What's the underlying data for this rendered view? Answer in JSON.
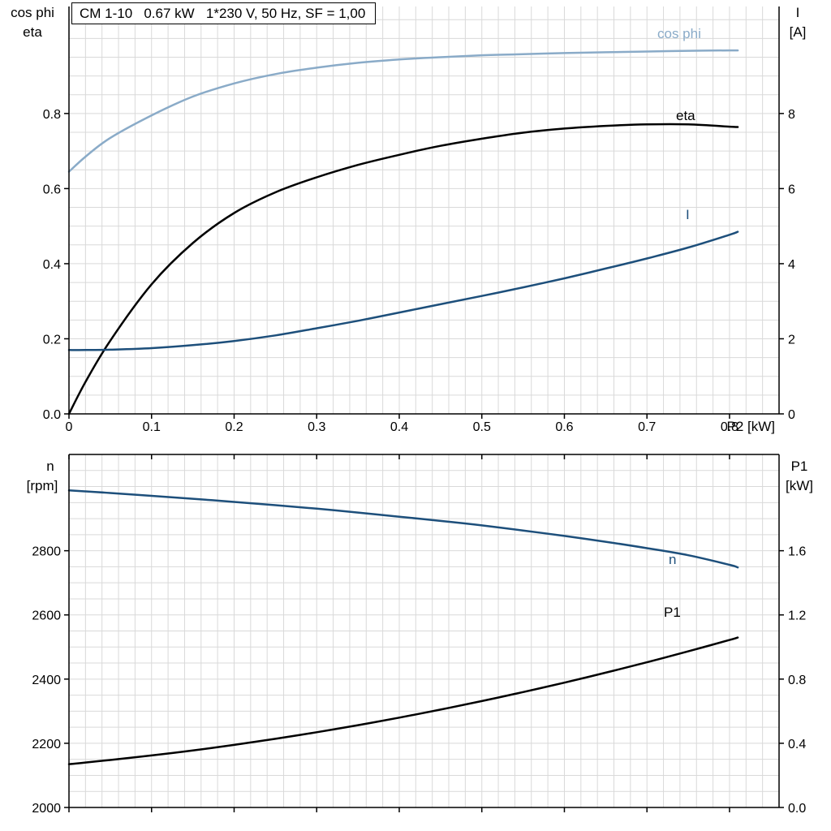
{
  "colors": {
    "grid": "#d9d9d9",
    "axis": "#000000",
    "light_blue": "#8aabc8",
    "dark_blue": "#1d4f7b",
    "black": "#000000"
  },
  "title_box": {
    "text": "CM 1-10   0.67 kW   1*230 V, 50 Hz, SF = 1,00"
  },
  "chart_data": [
    {
      "type": "line",
      "title": "CM 1-10   0.67 kW   1*230 V, 50 Hz, SF = 1,00",
      "x_axis_title": "P2 [kW]",
      "left_axis_title_line1": "cos phi",
      "left_axis_title_line2": "eta",
      "right_axis_title_line1": "I",
      "right_axis_title_line2": "[A]",
      "x_range": [
        0,
        0.86
      ],
      "y_left_range": [
        0,
        1.085
      ],
      "y_right_range": [
        0,
        10.85
      ],
      "grid": "on",
      "x_ticks": [
        {
          "v": 0,
          "label": "0"
        },
        {
          "v": 0.1,
          "label": "0.1"
        },
        {
          "v": 0.2,
          "label": "0.2"
        },
        {
          "v": 0.3,
          "label": "0.3"
        },
        {
          "v": 0.4,
          "label": "0.4"
        },
        {
          "v": 0.5,
          "label": "0.5"
        },
        {
          "v": 0.6,
          "label": "0.6"
        },
        {
          "v": 0.7,
          "label": "0.7"
        },
        {
          "v": 0.8,
          "label": "0.8"
        }
      ],
      "y_left_ticks": [
        {
          "v": 0,
          "label": "0.0"
        },
        {
          "v": 0.2,
          "label": "0.2"
        },
        {
          "v": 0.4,
          "label": "0.4"
        },
        {
          "v": 0.6,
          "label": "0.6"
        },
        {
          "v": 0.8,
          "label": "0.8"
        }
      ],
      "y_right_ticks": [
        {
          "v": 0,
          "label": "0"
        },
        {
          "v": 2,
          "label": "2"
        },
        {
          "v": 4,
          "label": "4"
        },
        {
          "v": 6,
          "label": "6"
        },
        {
          "v": 8,
          "label": "8"
        }
      ],
      "x": [
        0,
        0.02,
        0.05,
        0.1,
        0.15,
        0.2,
        0.25,
        0.3,
        0.35,
        0.4,
        0.45,
        0.5,
        0.55,
        0.6,
        0.65,
        0.7,
        0.75,
        0.8,
        0.81
      ],
      "series": [
        {
          "name": "cos phi",
          "axis": "left",
          "color": "#8aabc8",
          "values": [
            0.645,
            0.685,
            0.735,
            0.795,
            0.845,
            0.88,
            0.905,
            0.922,
            0.935,
            0.944,
            0.95,
            0.955,
            0.958,
            0.961,
            0.963,
            0.965,
            0.967,
            0.968,
            0.968
          ]
        },
        {
          "name": "eta",
          "axis": "left",
          "color": "#000000",
          "values": [
            0,
            0.085,
            0.195,
            0.345,
            0.455,
            0.535,
            0.59,
            0.63,
            0.663,
            0.69,
            0.714,
            0.733,
            0.749,
            0.76,
            0.767,
            0.771,
            0.771,
            0.765,
            0.764
          ]
        },
        {
          "name": "I",
          "axis": "right",
          "color": "#1d4f7b",
          "values": [
            1.7,
            1.7,
            1.71,
            1.75,
            1.83,
            1.94,
            2.09,
            2.28,
            2.48,
            2.7,
            2.92,
            3.14,
            3.37,
            3.61,
            3.87,
            4.14,
            4.43,
            4.77,
            4.85
          ]
        }
      ]
    },
    {
      "type": "line",
      "x_axis_title": "",
      "left_axis_title_line1": "n",
      "left_axis_title_line2": "[rpm]",
      "right_axis_title_line1": "P1",
      "right_axis_title_line2": "[kW]",
      "x_range": [
        0,
        0.86
      ],
      "y_left_range": [
        2000,
        3100
      ],
      "y_right_range": [
        0,
        2.2
      ],
      "grid": "on",
      "x_ticks": [
        {
          "v": 0
        },
        {
          "v": 0.1
        },
        {
          "v": 0.2
        },
        {
          "v": 0.3
        },
        {
          "v": 0.4
        },
        {
          "v": 0.5
        },
        {
          "v": 0.6
        },
        {
          "v": 0.7
        },
        {
          "v": 0.8
        }
      ],
      "y_left_ticks": [
        {
          "v": 2000,
          "label": "2000"
        },
        {
          "v": 2200,
          "label": "2200"
        },
        {
          "v": 2400,
          "label": "2400"
        },
        {
          "v": 2600,
          "label": "2600"
        },
        {
          "v": 2800,
          "label": "2800"
        }
      ],
      "y_right_ticks": [
        {
          "v": 0,
          "label": "0.0"
        },
        {
          "v": 0.4,
          "label": "0.4"
        },
        {
          "v": 0.8,
          "label": "0.8"
        },
        {
          "v": 1.2,
          "label": "1.2"
        },
        {
          "v": 1.6,
          "label": "1.6"
        }
      ],
      "x": [
        0,
        0.02,
        0.05,
        0.1,
        0.15,
        0.2,
        0.25,
        0.3,
        0.35,
        0.4,
        0.45,
        0.5,
        0.55,
        0.6,
        0.65,
        0.7,
        0.75,
        0.8,
        0.81
      ],
      "series": [
        {
          "name": "n",
          "axis": "left",
          "color": "#1d4f7b",
          "values": [
            2988,
            2985,
            2980,
            2971,
            2962,
            2952,
            2942,
            2931,
            2919,
            2906,
            2893,
            2879,
            2863,
            2846,
            2828,
            2808,
            2786,
            2756,
            2748
          ]
        },
        {
          "name": "P1",
          "axis": "right",
          "color": "#000000",
          "values": [
            0.27,
            0.28,
            0.296,
            0.324,
            0.355,
            0.39,
            0.428,
            0.469,
            0.513,
            0.56,
            0.61,
            0.663,
            0.719,
            0.778,
            0.84,
            0.905,
            0.973,
            1.044,
            1.059
          ]
        }
      ]
    }
  ]
}
